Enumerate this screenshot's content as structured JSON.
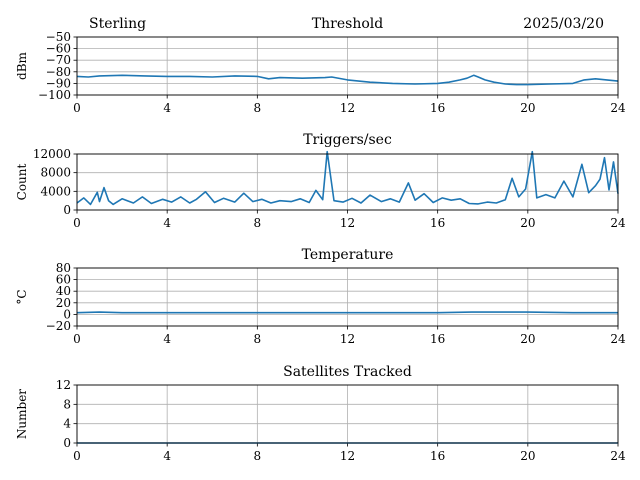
{
  "header": {
    "station": "Sterling",
    "date": "2025/03/20"
  },
  "colors": {
    "series": "#1f77b4",
    "grid": "#b0b0b0",
    "axes": "#000000"
  },
  "chart_data": [
    {
      "type": "line",
      "title": "Threshold",
      "ylabel": "dBm",
      "xlim": [
        0,
        24
      ],
      "ylim": [
        -100,
        -50
      ],
      "xticks": [
        "0",
        "4",
        "8",
        "12",
        "16",
        "20",
        "24"
      ],
      "yticks": [
        "−100",
        "−90",
        "−80",
        "−70",
        "−60",
        "−50"
      ],
      "grid": true,
      "series": [
        {
          "x": [
            0,
            0.5,
            1,
            2,
            3,
            4,
            5,
            6,
            7,
            8,
            8.5,
            9,
            10,
            11,
            11.3,
            12,
            12.5,
            13,
            14,
            15,
            16,
            16.5,
            17,
            17.3,
            17.6,
            17.8,
            18.1,
            18.5,
            19,
            19.5,
            20,
            21,
            22,
            22.5,
            23,
            23.5,
            24
          ],
          "y": [
            -84,
            -84.5,
            -83.5,
            -83,
            -83.5,
            -84,
            -84,
            -84.5,
            -83.5,
            -84,
            -86,
            -85,
            -85.5,
            -85,
            -84.5,
            -87,
            -88,
            -89,
            -90,
            -90.5,
            -90,
            -89,
            -87,
            -85.5,
            -83,
            -84.5,
            -87,
            -89,
            -90.5,
            -91,
            -91,
            -90.5,
            -90,
            -87,
            -86,
            -87,
            -88
          ]
        }
      ]
    },
    {
      "type": "line",
      "title": "Triggers/sec",
      "ylabel": "Count",
      "xlim": [
        0,
        24
      ],
      "ylim": [
        0,
        12000
      ],
      "xticks": [
        "0",
        "4",
        "8",
        "12",
        "16",
        "20",
        "24"
      ],
      "yticks": [
        "0",
        "4000",
        "8000",
        "12000"
      ],
      "grid": true,
      "series": [
        {
          "x": [
            0,
            0.3,
            0.6,
            0.9,
            1.0,
            1.2,
            1.4,
            1.6,
            2.0,
            2.5,
            2.9,
            3.3,
            3.8,
            4.2,
            4.6,
            5.0,
            5.3,
            5.7,
            6.1,
            6.5,
            7.0,
            7.4,
            7.8,
            8.2,
            8.6,
            9.0,
            9.5,
            9.9,
            10.3,
            10.6,
            10.9,
            11.1,
            11.4,
            11.8,
            12.2,
            12.6,
            13.0,
            13.5,
            13.9,
            14.3,
            14.7,
            15.0,
            15.4,
            15.8,
            16.2,
            16.6,
            17.0,
            17.4,
            17.8,
            18.2,
            18.6,
            19.0,
            19.3,
            19.6,
            19.9,
            20.2,
            20.4,
            20.8,
            21.2,
            21.6,
            22.0,
            22.4,
            22.7,
            23.0,
            23.2,
            23.4,
            23.6,
            23.8,
            24
          ],
          "y": [
            1500,
            2600,
            1200,
            3800,
            1800,
            4800,
            2000,
            1200,
            2400,
            1500,
            2800,
            1400,
            2300,
            1700,
            2800,
            1500,
            2300,
            3900,
            1600,
            2500,
            1700,
            3600,
            1800,
            2300,
            1500,
            2000,
            1800,
            2400,
            1600,
            4200,
            2200,
            12500,
            2000,
            1700,
            2500,
            1500,
            3200,
            1800,
            2400,
            1700,
            5800,
            2100,
            3500,
            1600,
            2600,
            2100,
            2400,
            1400,
            1300,
            1700,
            1500,
            2200,
            6800,
            2800,
            4500,
            12500,
            2600,
            3300,
            2600,
            6200,
            2800,
            9800,
            3700,
            5200,
            6600,
            11200,
            4300,
            10300,
            3500
          ]
        }
      ]
    },
    {
      "type": "line",
      "title": "Temperature",
      "ylabel": "°C",
      "xlim": [
        0,
        24
      ],
      "ylim": [
        -20,
        80
      ],
      "xticks": [
        "0",
        "4",
        "8",
        "12",
        "16",
        "20",
        "24"
      ],
      "yticks": [
        "−20",
        "0",
        "20",
        "40",
        "60",
        "80"
      ],
      "grid": true,
      "series": [
        {
          "x": [
            0,
            1,
            2,
            4,
            8,
            12,
            16,
            17.5,
            20,
            22,
            24
          ],
          "y": [
            3,
            4,
            3,
            3,
            3,
            3,
            3,
            4,
            4,
            3,
            3
          ]
        }
      ]
    },
    {
      "type": "line",
      "title": "Satellites Tracked",
      "ylabel": "Number",
      "xlim": [
        0,
        24
      ],
      "ylim": [
        0,
        12
      ],
      "xticks": [
        "0",
        "4",
        "8",
        "12",
        "16",
        "20",
        "24"
      ],
      "yticks": [
        "0",
        "4",
        "8",
        "12"
      ],
      "grid": true,
      "series": [
        {
          "x": [
            0,
            24
          ],
          "y": [
            0,
            0
          ]
        }
      ]
    }
  ]
}
